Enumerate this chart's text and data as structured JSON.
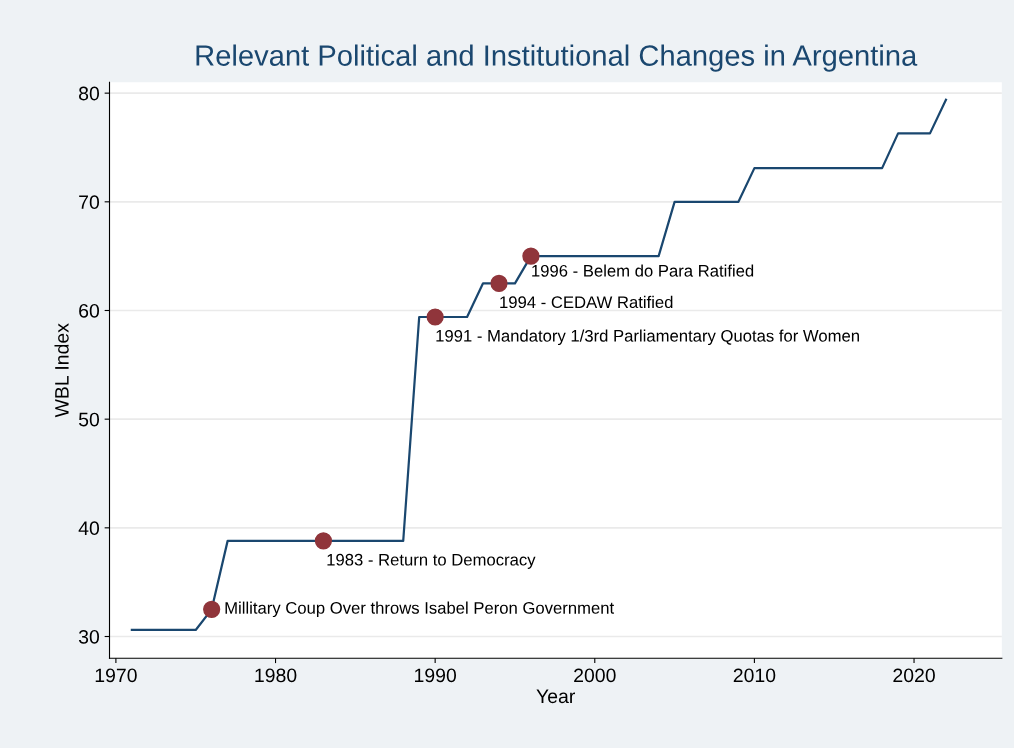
{
  "chart_data": {
    "type": "line",
    "title": "Relevant Political and Institutional Changes in Argentina",
    "xlabel": "Year",
    "ylabel": "WBL Index",
    "xlim": [
      1969.6,
      2025.5
    ],
    "xticks": [
      1970,
      1980,
      1990,
      2000,
      2010,
      2020
    ],
    "ylim": [
      28,
      81
    ],
    "yticks": [
      30,
      40,
      50,
      60,
      70,
      80
    ],
    "grid": "y",
    "legend": false,
    "series": [
      {
        "color": "#1a476f",
        "marker": "none",
        "x": [
          1971,
          1975,
          1976,
          1977,
          1988,
          1989,
          1992,
          1993,
          1995,
          1996,
          2004,
          2005,
          2009,
          2010,
          2018,
          2019,
          2021,
          2022
        ],
        "values": [
          30.6,
          30.6,
          32.5,
          38.8,
          38.8,
          59.4,
          59.4,
          62.5,
          62.5,
          65,
          65,
          70,
          70,
          73.1,
          73.1,
          76.3,
          76.3,
          79.4
        ]
      },
      {
        "type": "scatter",
        "color": "#90353b",
        "marker": "circle",
        "x": [
          1976,
          1983,
          1990,
          1994,
          1996
        ],
        "values": [
          32.5,
          38.8,
          59.4,
          62.5,
          65
        ]
      }
    ],
    "annotations": [
      {
        "text": "Millitary Coup Over throws Isabel Peron Government",
        "x": 1976,
        "y": 32.5
      },
      {
        "text": "1983 - Return to Democracy",
        "x": 1983,
        "y": 38.8
      },
      {
        "text": "1991 - Mandatory 1/3rd Parliamentary Quotas for Women",
        "x": 1990,
        "y": 59.4
      },
      {
        "text": "1994 - CEDAW Ratified",
        "x": 1994,
        "y": 62.5
      },
      {
        "text": "1996 - Belem do Para Ratified",
        "x": 1996,
        "y": 65
      }
    ]
  }
}
